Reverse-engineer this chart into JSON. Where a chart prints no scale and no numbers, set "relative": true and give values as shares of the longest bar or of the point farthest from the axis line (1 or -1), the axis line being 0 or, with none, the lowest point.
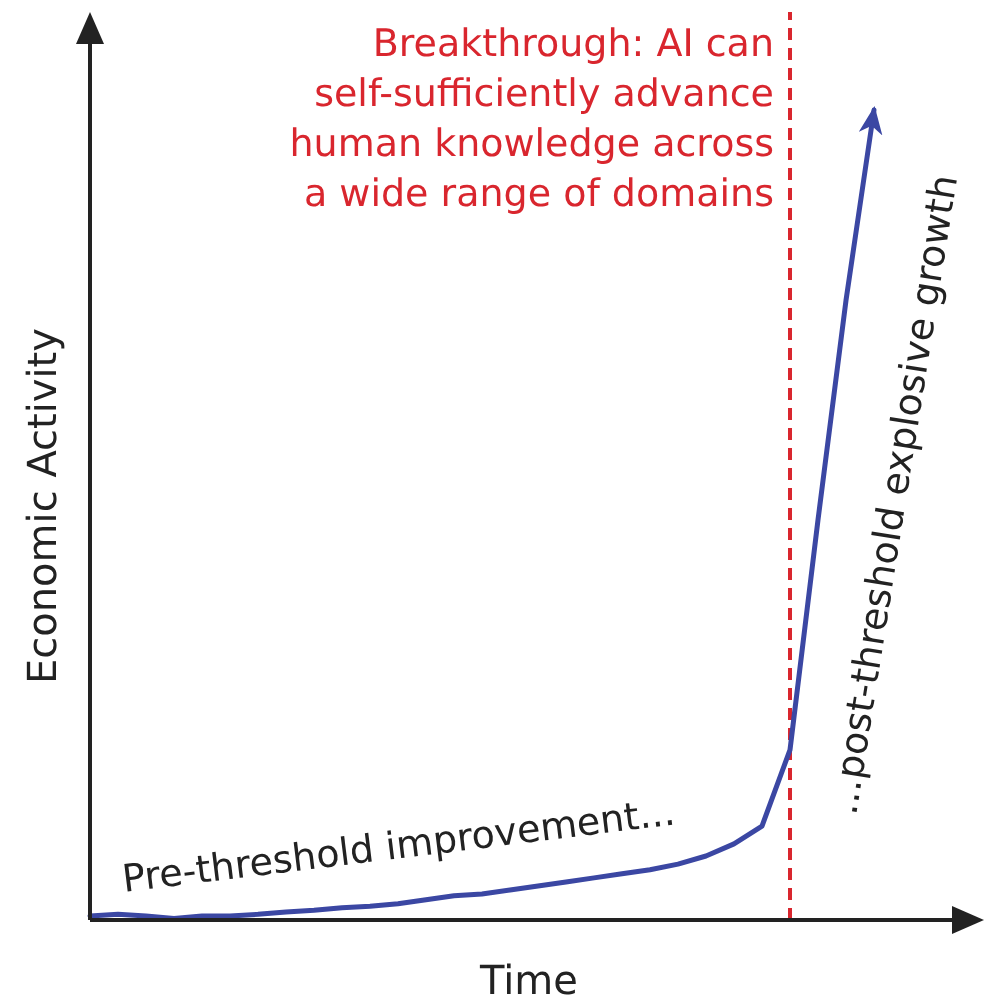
{
  "chart_data": {
    "type": "line",
    "relative": true,
    "xlabel": "Time",
    "ylabel": "Economic Activity",
    "categories": [
      null,
      null,
      null,
      null,
      null,
      null,
      null,
      null,
      null,
      null,
      null,
      null,
      null,
      null,
      null,
      null,
      null,
      null,
      null,
      null,
      null,
      null,
      null,
      null,
      null,
      null,
      null,
      null,
      null
    ],
    "series": [
      {
        "color": "#3b47a3",
        "values": [
          0.005,
          0.007,
          0.005,
          0.002,
          0.005,
          0.005,
          0.007,
          0.01,
          0.012,
          0.015,
          0.017,
          0.02,
          0.025,
          0.03,
          0.032,
          0.037,
          0.042,
          0.047,
          0.052,
          0.057,
          0.062,
          0.069,
          0.079,
          0.094,
          0.116,
          0.21,
          0.494,
          0.765,
          1
        ]
      }
    ],
    "annotations": [
      "Breakthrough: AI can\nself-sufficiently advance\nhuman knowledge across\na wide range of domains",
      "Pre-threshold improvement...",
      "...post-threshold explosive growth"
    ],
    "marker": "none",
    "line_style": "solid"
  }
}
